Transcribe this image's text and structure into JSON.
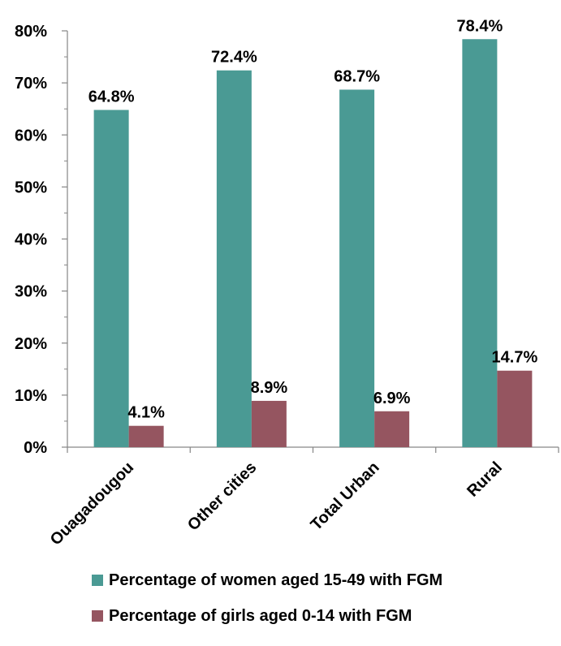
{
  "chart_data": {
    "type": "bar",
    "categories": [
      "Ouagadougou",
      "Other cities",
      "Total Urban",
      "Rural"
    ],
    "series": [
      {
        "name": "Percentage of women aged 15-49 with FGM",
        "values": [
          64.8,
          72.4,
          68.7,
          78.4
        ],
        "labels": [
          "64.8%",
          "72.4%",
          "68.7%",
          "78.4%"
        ],
        "color": "#4a9a94"
      },
      {
        "name": "Percentage of girls aged 0-14 with FGM",
        "values": [
          4.1,
          8.9,
          6.9,
          14.7
        ],
        "labels": [
          "4.1%",
          "8.9%",
          "6.9%",
          "14.7%"
        ],
        "color": "#955560"
      }
    ],
    "ylim": [
      0,
      80
    ],
    "yticks": [
      0,
      10,
      20,
      30,
      40,
      50,
      60,
      70,
      80
    ],
    "ytick_labels": [
      "0%",
      "10%",
      "20%",
      "30%",
      "40%",
      "50%",
      "60%",
      "70%",
      "80%"
    ],
    "grid": false,
    "legend_position": "bottom",
    "xlabel": "",
    "ylabel": "",
    "title": ""
  }
}
